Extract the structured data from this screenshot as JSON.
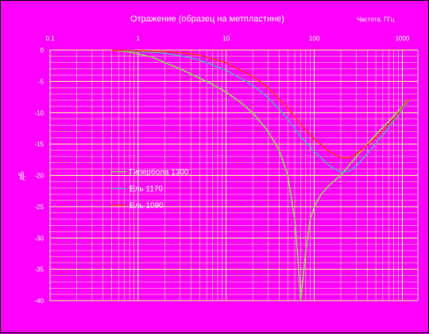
{
  "chart_data": {
    "type": "line",
    "title": "Отражение (образец на метпластине)",
    "xlabel": "Частота, ГГц",
    "ylabel": "дБ",
    "x_scale": "log",
    "xlim": [
      0.1,
      1500
    ],
    "ylim": [
      -40,
      0
    ],
    "x_ticks": [
      "0.1",
      "1",
      "10",
      "100",
      "1000"
    ],
    "y_ticks": [
      "0",
      "-5",
      "-10",
      "-15",
      "-20",
      "-25",
      "-30",
      "-35",
      "-40"
    ],
    "grid": true,
    "legend_position": "left-middle",
    "series": [
      {
        "name": "Гипербола 1300",
        "color": "#99cc66",
        "x": [
          0.5,
          0.8,
          1,
          1.5,
          2,
          3,
          5,
          7,
          10,
          15,
          20,
          30,
          40,
          50,
          60,
          65,
          70,
          75,
          80,
          90,
          100,
          120,
          150,
          200,
          300,
          500,
          800,
          1200
        ],
        "y": [
          0,
          -0.3,
          -0.6,
          -1.2,
          -2,
          -3,
          -4.5,
          -5.5,
          -6.7,
          -8.5,
          -10,
          -13,
          -16,
          -20,
          -27,
          -33,
          -40,
          -36,
          -32,
          -27,
          -25,
          -23,
          -21.5,
          -20,
          -17,
          -13.5,
          -10.5,
          -7.8
        ]
      },
      {
        "name": "Ель 1170",
        "color": "#6699cc",
        "x": [
          0.5,
          1,
          2,
          3,
          5,
          10,
          20,
          30,
          50,
          70,
          100,
          150,
          200,
          250,
          300,
          500,
          800,
          1200
        ],
        "y": [
          0,
          -0.2,
          -0.5,
          -0.9,
          -1.6,
          -3.2,
          -5.6,
          -7.6,
          -11,
          -13.8,
          -16.2,
          -18.5,
          -19.5,
          -19.3,
          -18.5,
          -15,
          -11.3,
          -8
        ]
      },
      {
        "name": "Ель 1090",
        "color": "#ff3333",
        "x": [
          0.5,
          1,
          2,
          3,
          5,
          10,
          20,
          30,
          50,
          70,
          100,
          150,
          200,
          250,
          300,
          500,
          800,
          1200
        ],
        "y": [
          0,
          -0.1,
          -0.2,
          -0.4,
          -0.8,
          -2,
          -4.2,
          -6,
          -9.2,
          -11.8,
          -14.2,
          -16.2,
          -17.2,
          -17.2,
          -16.6,
          -14,
          -11,
          -7.8
        ]
      }
    ]
  }
}
